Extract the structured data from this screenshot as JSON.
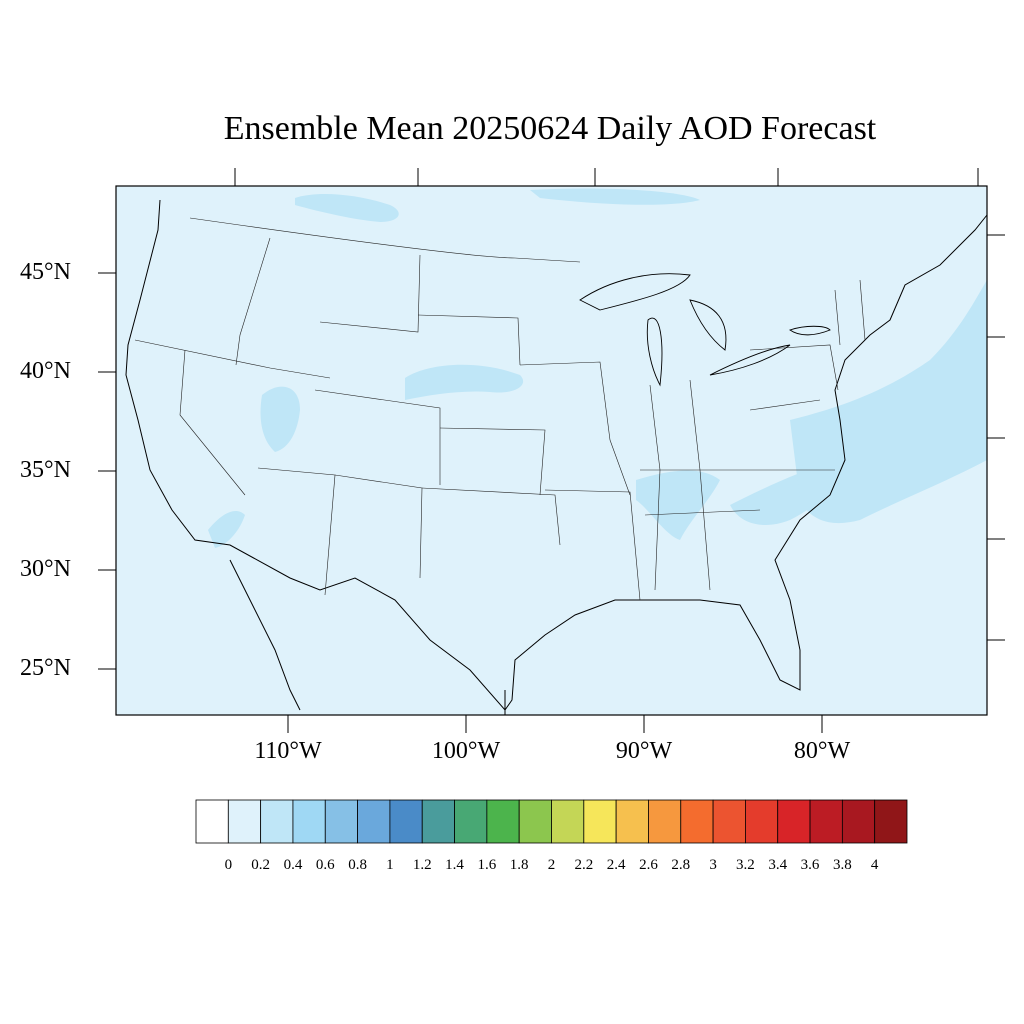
{
  "title": "Ensemble Mean 20250624 Daily AOD Forecast",
  "lat_labels": [
    "45°N",
    "40°N",
    "35°N",
    "30°N",
    "25°N"
  ],
  "lon_labels": [
    "110°W",
    "100°W",
    "90°W",
    "80°W"
  ],
  "map": {
    "background_color": "#dff2fb",
    "elevated_color": "#bfe6f7",
    "elevated_regions": [
      "southern Canada plume",
      "central Plains / Nebraska",
      "Utah",
      "Arizona–California border",
      "Tennessee–Alabama–Georgia",
      "Carolinas coast",
      "western Atlantic offshore plume"
    ]
  },
  "colorbar": {
    "levels": [
      "0",
      "0.2",
      "0.4",
      "0.6",
      "0.8",
      "1",
      "1.2",
      "1.4",
      "1.6",
      "1.8",
      "2",
      "2.2",
      "2.4",
      "2.6",
      "2.8",
      "3",
      "3.2",
      "3.4",
      "3.6",
      "3.8",
      "4"
    ],
    "colors": [
      "#ffffff",
      "#dff2fb",
      "#bfe6f7",
      "#9fd8f4",
      "#86c0e6",
      "#6aa8dc",
      "#4a8bc8",
      "#4a9c9c",
      "#48a874",
      "#4cb44c",
      "#8cc64e",
      "#c4d656",
      "#f6e65a",
      "#f6c04e",
      "#f6983e",
      "#f46c2e",
      "#ec5430",
      "#e43c2c",
      "#d82428",
      "#bc1c24",
      "#a81820",
      "#901618"
    ]
  }
}
